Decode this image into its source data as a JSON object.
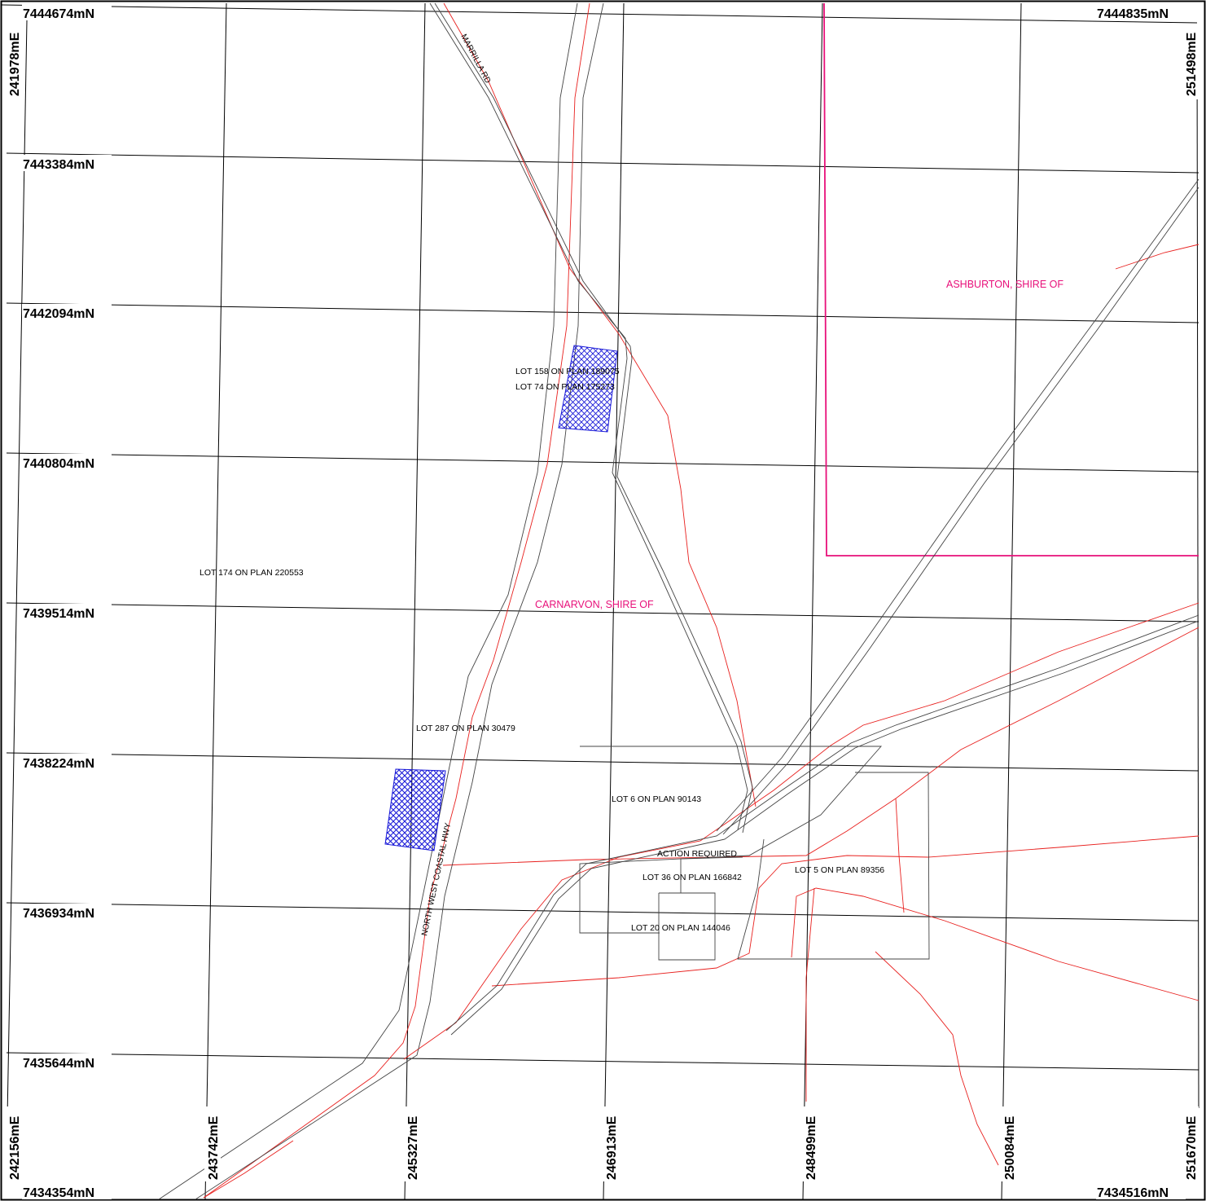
{
  "map": {
    "northing_labels_left": [
      "7444674mN",
      "7443384mN",
      "7442094mN",
      "7440804mN",
      "7439514mN",
      "7438224mN",
      "7436934mN",
      "7435644mN",
      "7434354mN"
    ],
    "northing_label_top_right": "7444835mN",
    "northing_label_bottom_right": "7434516mN",
    "easting_labels_bottom": [
      "242156mE",
      "243742mE",
      "245327mE",
      "246913mE",
      "248499mE",
      "250084mE",
      "251670mE"
    ],
    "easting_label_top_left": "241978mE",
    "easting_label_top_right": "251498mE",
    "roads": {
      "marrilla": "MARRILLA RD",
      "highway": "NORTH WEST COASTAL HWY"
    },
    "shires": {
      "ashburton": "ASHBURTON, SHIRE OF",
      "carnarvon": "CARNARVON, SHIRE OF"
    },
    "lots": {
      "lot158": "LOT 158 ON PLAN 189075",
      "lot74": "LOT 74 ON PLAN 175273",
      "lot174": "LOT 174 ON PLAN 220553",
      "lot287": "LOT 287 ON PLAN 30479",
      "lot6": "LOT 6 ON PLAN 90143",
      "action": "ACTION REQUIRED",
      "lot36": "LOT 36 ON PLAN 166842",
      "lot5": "LOT 5 ON PLAN 89356",
      "lot20": "LOT 20 ON PLAN 144046"
    },
    "colors": {
      "grid": "#000000",
      "cadastre": "#555555",
      "road_centre": "#e8201e",
      "shire_boundary": "#e8107a",
      "hatch": "#1a1ad8"
    }
  }
}
